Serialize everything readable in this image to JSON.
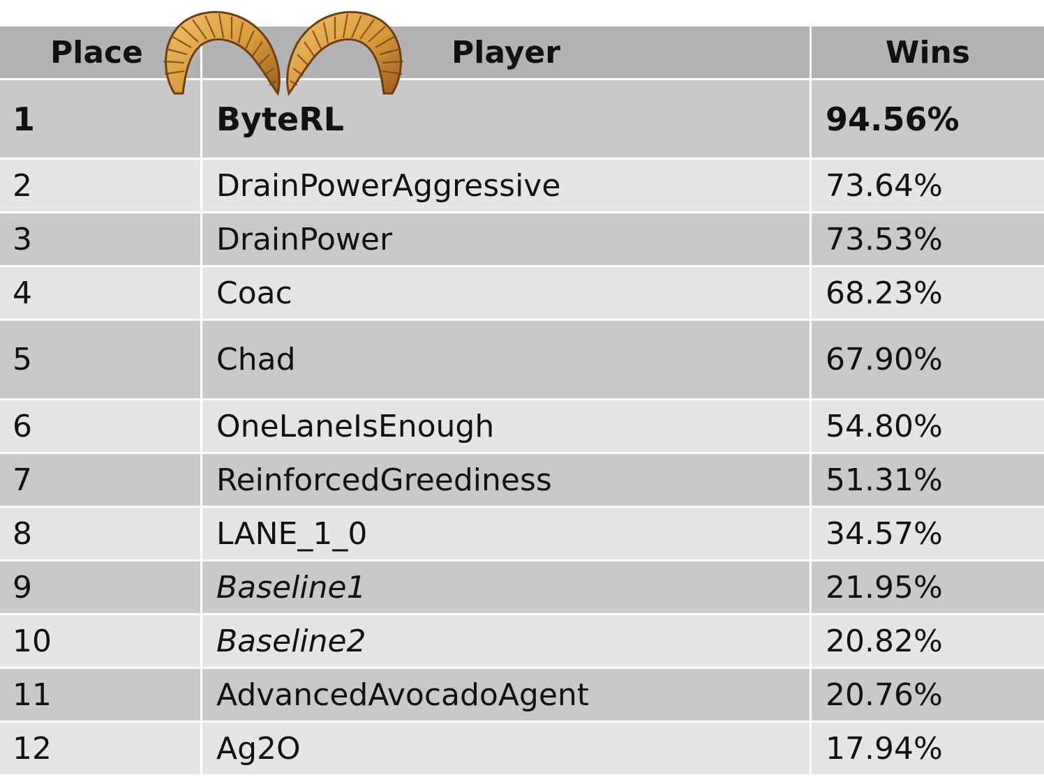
{
  "table": {
    "headers": {
      "place": "Place",
      "player": "Player",
      "wins": "Wins"
    },
    "rows": [
      {
        "place": "1",
        "player": "ByteRL",
        "wins": "94.56%"
      },
      {
        "place": "2",
        "player": "DrainPowerAggressive",
        "wins": "73.64%"
      },
      {
        "place": "3",
        "player": "DrainPower",
        "wins": "73.53%"
      },
      {
        "place": "4",
        "player": "Coac",
        "wins": "68.23%"
      },
      {
        "place": "5",
        "player": "Chad",
        "wins": "67.90%"
      },
      {
        "place": "6",
        "player": "OneLaneIsEnough",
        "wins": "54.80%"
      },
      {
        "place": "7",
        "player": "ReinforcedGreediness",
        "wins": "51.31%"
      },
      {
        "place": "8",
        "player": "LANE_1_0",
        "wins": "34.57%"
      },
      {
        "place": "9",
        "player": "Baseline1",
        "wins": "21.95%"
      },
      {
        "place": "10",
        "player": "Baseline2",
        "wins": "20.82%"
      },
      {
        "place": "11",
        "player": "AdvancedAvocadoAgent",
        "wins": "20.76%"
      },
      {
        "place": "12",
        "player": "Ag2O",
        "wins": "17.94%"
      }
    ]
  },
  "decoration": {
    "icon": "ram-horns-icon",
    "colors": {
      "horn_fill": "#d99a3a",
      "horn_stroke": "#6b3f12"
    }
  },
  "colors": {
    "header_bg": "#b3b3b3",
    "row_dark": "#c9c9c9",
    "row_light": "#e5e5e5",
    "divider": "#ffffff"
  }
}
